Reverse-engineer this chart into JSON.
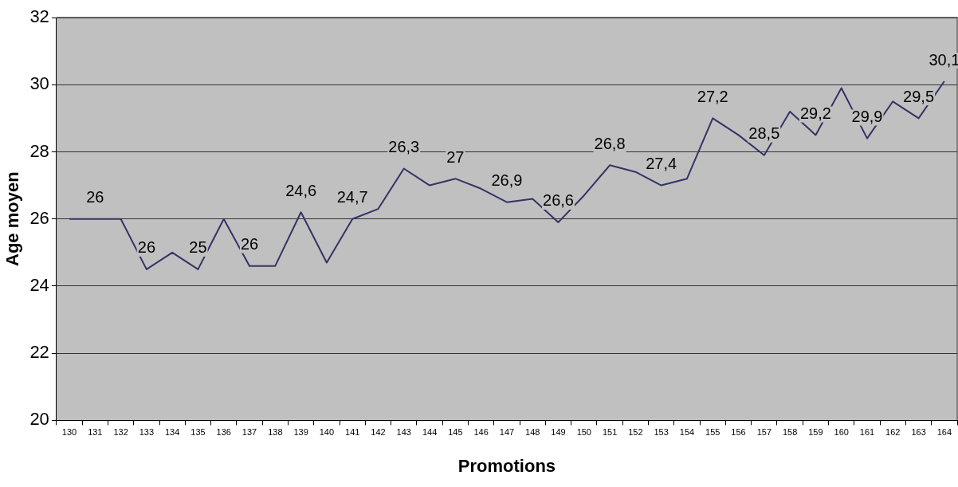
{
  "chart_data": {
    "type": "line",
    "xlabel": "Promotions",
    "ylabel": "Age moyen",
    "categories": [
      "130",
      "131",
      "132",
      "133",
      "134",
      "135",
      "136",
      "137",
      "138",
      "139",
      "140",
      "141",
      "142",
      "143",
      "144",
      "145",
      "146",
      "147",
      "148",
      "149",
      "150",
      "151",
      "152",
      "153",
      "154",
      "155",
      "156",
      "157",
      "158",
      "159",
      "160",
      "161",
      "162",
      "163",
      "164"
    ],
    "series": [
      {
        "color": "#333366",
        "values": [
          26,
          26,
          26,
          24.5,
          25,
          24.5,
          26,
          24.6,
          24.6,
          26.2,
          24.7,
          26,
          26.3,
          27.5,
          27,
          27.2,
          26.9,
          26.5,
          26.6,
          25.9,
          26.7,
          27.6,
          27.4,
          27,
          27.2,
          29,
          28.5,
          27.9,
          29.2,
          28.5,
          29.9,
          28.4,
          29.5,
          29,
          30.1
        ]
      }
    ],
    "ylim": [
      20,
      32
    ],
    "yticks": [
      20,
      22,
      24,
      26,
      28,
      30,
      32
    ],
    "grid": "y",
    "legend": false,
    "marker": "none",
    "annotations": [
      {
        "text": "26",
        "x": "131",
        "y": 26
      },
      {
        "text": "26",
        "x": "133",
        "y": 24.5
      },
      {
        "text": "25",
        "x": "135",
        "y": 24.5
      },
      {
        "text": "26",
        "x": "137",
        "y": 24.6
      },
      {
        "text": "24,6",
        "x": "139",
        "y": 26.2
      },
      {
        "text": "24,7",
        "x": "141",
        "y": 26
      },
      {
        "text": "26,3",
        "x": "143",
        "y": 27.5
      },
      {
        "text": "27",
        "x": "145",
        "y": 27.2
      },
      {
        "text": "26,9",
        "x": "147",
        "y": 26.5
      },
      {
        "text": "26,6",
        "x": "149",
        "y": 25.9
      },
      {
        "text": "26,8",
        "x": "151",
        "y": 27.6
      },
      {
        "text": "27,4",
        "x": "153",
        "y": 27
      },
      {
        "text": "27,2",
        "x": "155",
        "y": 29
      },
      {
        "text": "28,5",
        "x": "157",
        "y": 27.9
      },
      {
        "text": "29,2",
        "x": "159",
        "y": 28.5
      },
      {
        "text": "29,9",
        "x": "161",
        "y": 28.4
      },
      {
        "text": "29,5",
        "x": "163",
        "y": 29
      },
      {
        "text": "30,1",
        "x": "164",
        "y": 30.1
      }
    ]
  }
}
